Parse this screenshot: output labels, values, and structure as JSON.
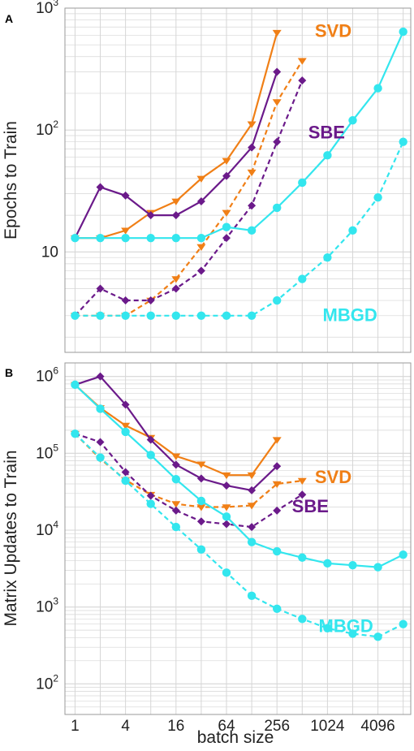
{
  "colors": {
    "SVD": "#f07f16",
    "SBE": "#6b1a8a",
    "MBGD": "#33e6ee",
    "grid": "#d6d6d6",
    "frame": "#9a9a9a"
  },
  "xlabel": "batch size",
  "x_ticks": [
    "1",
    "4",
    "16",
    "64",
    "256",
    "1024",
    "4096"
  ],
  "chart_data": [
    {
      "type": "line",
      "panel": "A",
      "ylabel": "Epochs to Train",
      "yscale": "log",
      "xscale": "log2",
      "ylim": [
        1.5,
        1000
      ],
      "y_ticks": [
        {
          "value": 10,
          "base": "10",
          "exp": ""
        },
        {
          "value": 100,
          "base": "10",
          "exp": "2"
        },
        {
          "value": 1000,
          "base": "10",
          "exp": "3"
        }
      ],
      "grid": true,
      "series_labels": [
        {
          "text": "SVD",
          "color_key": "SVD",
          "at": [
            1200,
            580
          ]
        },
        {
          "text": "SBE",
          "color_key": "SBE",
          "at": [
            1000,
            85
          ]
        },
        {
          "text": "MBGD",
          "color_key": "MBGD",
          "at": [
            1900,
            2.7
          ]
        }
      ],
      "series": [
        {
          "group": "SVD",
          "style": "solid",
          "marker": "triangle",
          "points": [
            [
              1,
              13
            ],
            [
              2,
              13
            ],
            [
              4,
              15
            ],
            [
              8,
              21
            ],
            [
              16,
              26
            ],
            [
              32,
              40
            ],
            [
              64,
              56
            ],
            [
              128,
              112
            ],
            [
              256,
              630
            ]
          ]
        },
        {
          "group": "SVD",
          "style": "dashed",
          "marker": "triangle",
          "points": [
            [
              1,
              3
            ],
            [
              2,
              3
            ],
            [
              4,
              3
            ],
            [
              8,
              4
            ],
            [
              16,
              6
            ],
            [
              32,
              11
            ],
            [
              64,
              21
            ],
            [
              128,
              45
            ],
            [
              256,
              170
            ],
            [
              512,
              370
            ]
          ]
        },
        {
          "group": "SBE",
          "style": "solid",
          "marker": "diamond",
          "points": [
            [
              1,
              13
            ],
            [
              2,
              34
            ],
            [
              4,
              29
            ],
            [
              8,
              20
            ],
            [
              16,
              20
            ],
            [
              32,
              26
            ],
            [
              64,
              42
            ],
            [
              128,
              72
            ],
            [
              256,
              300
            ]
          ]
        },
        {
          "group": "SBE",
          "style": "dashed",
          "marker": "diamond",
          "points": [
            [
              1,
              3
            ],
            [
              2,
              5
            ],
            [
              4,
              4
            ],
            [
              8,
              4
            ],
            [
              16,
              5
            ],
            [
              32,
              7
            ],
            [
              64,
              13
            ],
            [
              128,
              24
            ],
            [
              256,
              80
            ],
            [
              512,
              255
            ]
          ]
        },
        {
          "group": "MBGD",
          "style": "solid",
          "marker": "circle",
          "points": [
            [
              1,
              13
            ],
            [
              2,
              13
            ],
            [
              4,
              13
            ],
            [
              8,
              13
            ],
            [
              16,
              13
            ],
            [
              32,
              13
            ],
            [
              64,
              16
            ],
            [
              128,
              15
            ],
            [
              256,
              23
            ],
            [
              512,
              37
            ],
            [
              1024,
              62
            ],
            [
              2048,
              120
            ],
            [
              4096,
              220
            ],
            [
              8192,
              640
            ]
          ]
        },
        {
          "group": "MBGD",
          "style": "dashed",
          "marker": "circle",
          "points": [
            [
              1,
              3
            ],
            [
              2,
              3
            ],
            [
              4,
              3
            ],
            [
              8,
              3
            ],
            [
              16,
              3
            ],
            [
              32,
              3
            ],
            [
              64,
              3
            ],
            [
              128,
              3
            ],
            [
              256,
              4
            ],
            [
              512,
              6
            ],
            [
              1024,
              9
            ],
            [
              2048,
              15
            ],
            [
              4096,
              28
            ],
            [
              8192,
              80
            ]
          ]
        }
      ]
    },
    {
      "type": "line",
      "panel": "B",
      "ylabel": "Matrix Updates to Train",
      "yscale": "log",
      "xscale": "log2",
      "ylim": [
        40,
        1500000
      ],
      "y_ticks": [
        {
          "value": 100,
          "base": "10",
          "exp": "2"
        },
        {
          "value": 1000,
          "base": "10",
          "exp": "3"
        },
        {
          "value": 10000,
          "base": "10",
          "exp": "4"
        },
        {
          "value": 100000,
          "base": "10",
          "exp": "5"
        },
        {
          "value": 1000000,
          "base": "10",
          "exp": "6"
        }
      ],
      "grid": true,
      "series_labels": [
        {
          "text": "SVD",
          "color_key": "SVD",
          "at": [
            1200,
            41000
          ]
        },
        {
          "text": "SBE",
          "color_key": "SBE",
          "at": [
            640,
            17000
          ]
        },
        {
          "text": "MBGD",
          "color_key": "MBGD",
          "at": [
            1700,
            470
          ]
        }
      ],
      "series": [
        {
          "group": "SVD",
          "style": "solid",
          "marker": "triangle",
          "points": [
            [
              1,
              780000
            ],
            [
              2,
              390000
            ],
            [
              4,
              230000
            ],
            [
              8,
              160000
            ],
            [
              16,
              92000
            ],
            [
              32,
              72000
            ],
            [
              64,
              52000
            ],
            [
              128,
              52000
            ],
            [
              256,
              150000
            ]
          ]
        },
        {
          "group": "SVD",
          "style": "dashed",
          "marker": "triangle",
          "points": [
            [
              1,
              180000
            ],
            [
              2,
              85000
            ],
            [
              4,
              45000
            ],
            [
              8,
              29000
            ],
            [
              16,
              22000
            ],
            [
              32,
              20000
            ],
            [
              64,
              20000
            ],
            [
              128,
              21000
            ],
            [
              256,
              40000
            ],
            [
              512,
              44000
            ]
          ]
        },
        {
          "group": "SBE",
          "style": "solid",
          "marker": "diamond",
          "points": [
            [
              1,
              780000
            ],
            [
              2,
              1000000
            ],
            [
              4,
              430000
            ],
            [
              8,
              150000
            ],
            [
              16,
              71000
            ],
            [
              32,
              47000
            ],
            [
              64,
              38000
            ],
            [
              128,
              33000
            ],
            [
              256,
              68000
            ]
          ]
        },
        {
          "group": "SBE",
          "style": "dashed",
          "marker": "diamond",
          "points": [
            [
              1,
              180000
            ],
            [
              2,
              140000
            ],
            [
              4,
              57000
            ],
            [
              8,
              28000
            ],
            [
              16,
              18000
            ],
            [
              32,
              13000
            ],
            [
              64,
              12000
            ],
            [
              128,
              11000
            ],
            [
              256,
              18000
            ],
            [
              512,
              29000
            ]
          ]
        },
        {
          "group": "MBGD",
          "style": "solid",
          "marker": "circle",
          "points": [
            [
              1,
              780000
            ],
            [
              2,
              380000
            ],
            [
              4,
              190000
            ],
            [
              8,
              95000
            ],
            [
              16,
              46000
            ],
            [
              32,
              24000
            ],
            [
              64,
              15000
            ],
            [
              128,
              7000
            ],
            [
              256,
              5300
            ],
            [
              512,
              4400
            ],
            [
              1024,
              3700
            ],
            [
              2048,
              3500
            ],
            [
              4096,
              3300
            ],
            [
              8192,
              4800
            ]
          ]
        },
        {
          "group": "MBGD",
          "style": "dashed",
          "marker": "circle",
          "points": [
            [
              1,
              180000
            ],
            [
              2,
              88000
            ],
            [
              4,
              44000
            ],
            [
              8,
              22000
            ],
            [
              16,
              11000
            ],
            [
              32,
              5600
            ],
            [
              64,
              2800
            ],
            [
              128,
              1400
            ],
            [
              256,
              950
            ],
            [
              512,
              700
            ],
            [
              1024,
              530
            ],
            [
              2048,
              450
            ],
            [
              4096,
              410
            ],
            [
              8192,
              600
            ]
          ]
        }
      ]
    }
  ]
}
